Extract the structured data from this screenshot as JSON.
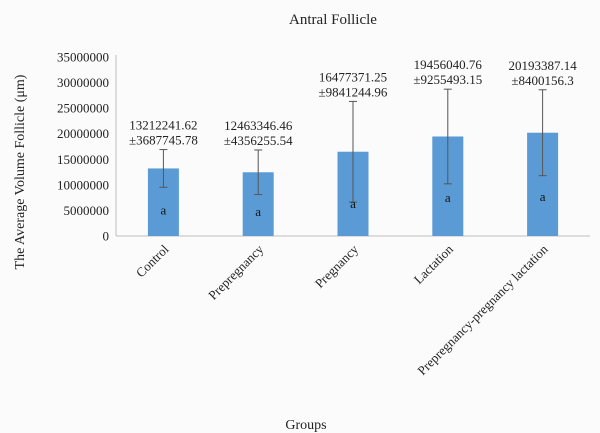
{
  "chart_data": {
    "type": "bar",
    "title": "Antral Follicle",
    "xlabel": "Groups",
    "ylabel": "The Average Volume Follicle (μm)",
    "ylim": [
      0,
      35000000
    ],
    "yticks": [
      0,
      5000000,
      10000000,
      15000000,
      20000000,
      25000000,
      30000000,
      35000000
    ],
    "grid": false,
    "bar_color": "#5b9bd5",
    "categories": [
      "Control",
      "Prepregnancy",
      "Pregnancy",
      "Lactation",
      "Prepregnancy-pregnancy lactation"
    ],
    "values": [
      13212241.62,
      12463346.46,
      16477371.25,
      19456040.76,
      20193387.14
    ],
    "errors": [
      3687745.78,
      4356255.54,
      9841244.96,
      9255493.15,
      8400156.3
    ],
    "data_labels": [
      {
        "mean": "13212241.62",
        "sd": "±3687745.78"
      },
      {
        "mean": "12463346.46",
        "sd": "±4356255.54"
      },
      {
        "mean": "16477371.25",
        "sd": "±9841244.96"
      },
      {
        "mean": "19456040.76",
        "sd": "±9255493.15"
      },
      {
        "mean": "20193387.14",
        "sd": "±8400156.3"
      }
    ],
    "significance": [
      "a",
      "a",
      "a",
      "a",
      "a"
    ]
  }
}
